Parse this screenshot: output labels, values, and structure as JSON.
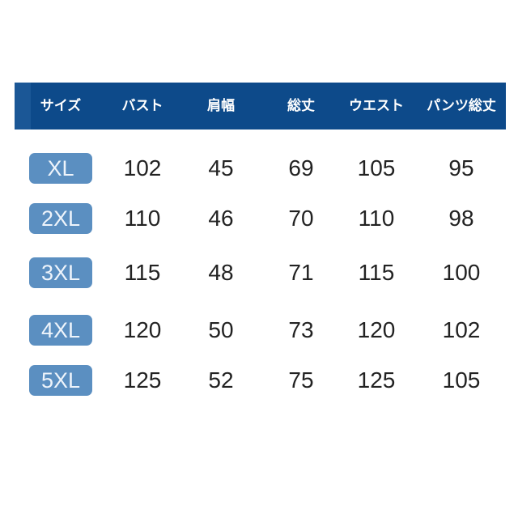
{
  "colors": {
    "header_bg": "#0d4a8a",
    "badge_bg": "#5b8fc1"
  },
  "headers": [
    "サイズ",
    "バスト",
    "肩幅",
    "総丈",
    "ウエスト",
    "パンツ総丈"
  ],
  "rows": [
    {
      "size": "XL",
      "values": [
        "102",
        "45",
        "69",
        "105",
        "95"
      ]
    },
    {
      "size": "2XL",
      "values": [
        "110",
        "46",
        "70",
        "110",
        "98"
      ]
    },
    {
      "size": "3XL",
      "values": [
        "115",
        "48",
        "71",
        "115",
        "100"
      ]
    },
    {
      "size": "4XL",
      "values": [
        "120",
        "50",
        "73",
        "120",
        "102"
      ]
    },
    {
      "size": "5XL",
      "values": [
        "125",
        "52",
        "75",
        "125",
        "105"
      ]
    }
  ]
}
